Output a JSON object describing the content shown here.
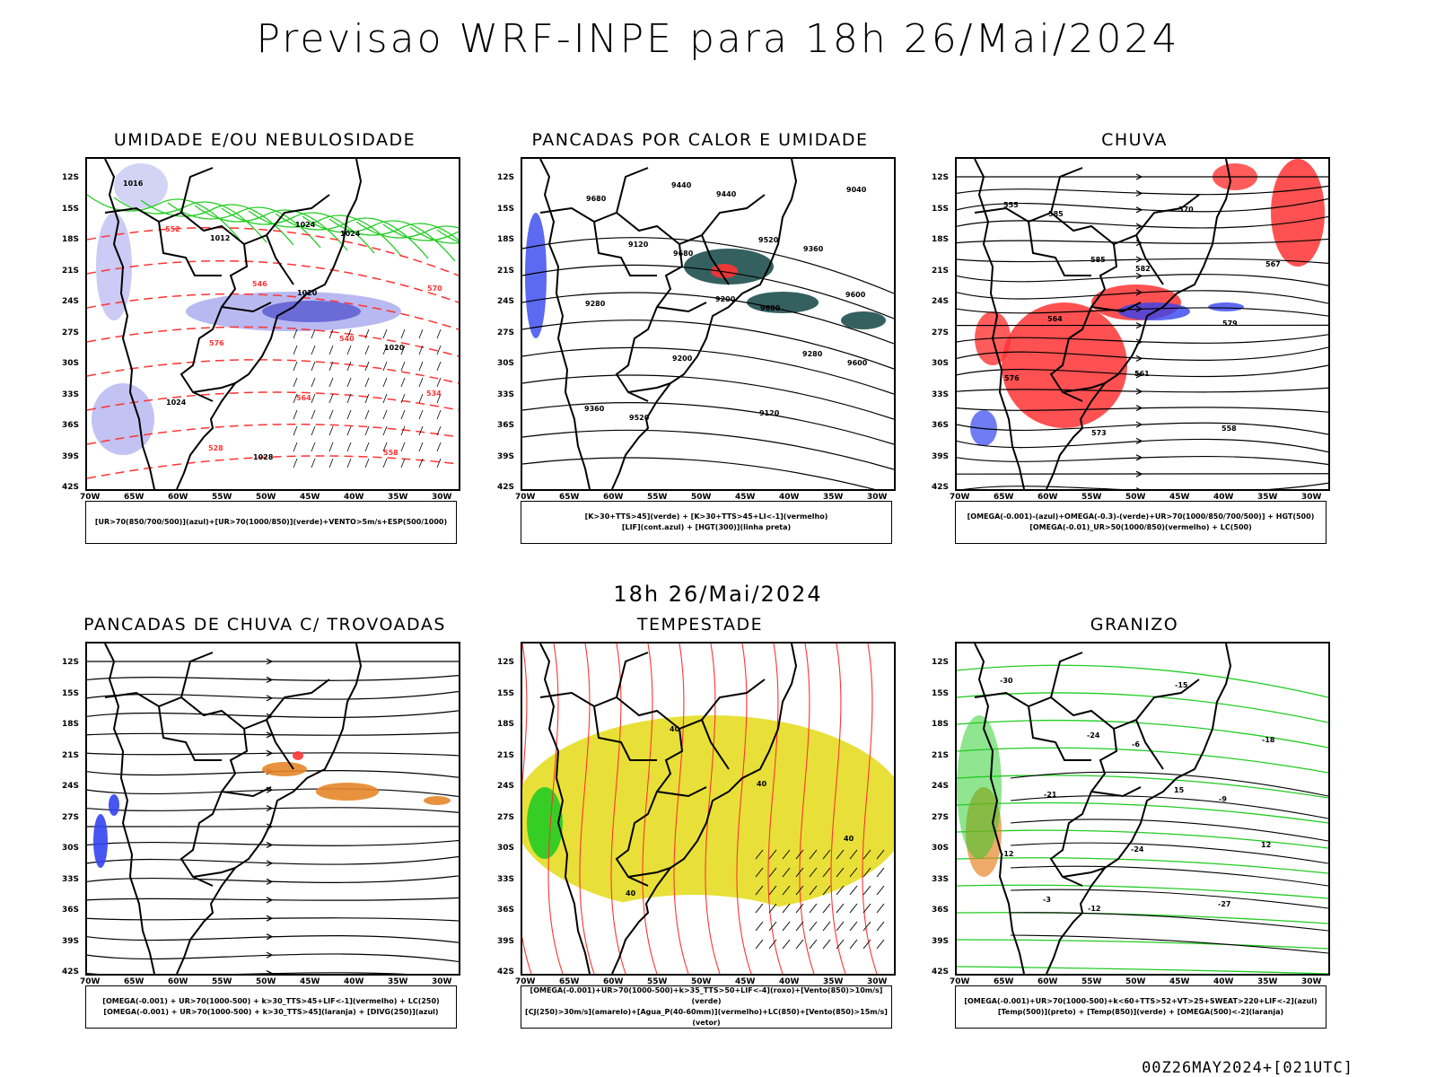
{
  "main_title": "Previsao WRF-INPE  para 18h 26/Mai/2024",
  "mid_title": "18h 26/Mai/2024",
  "footer": "00Z26MAY2024+[021UTC]",
  "axes": {
    "lat_labels": [
      "12S",
      "15S",
      "18S",
      "21S",
      "24S",
      "27S",
      "30S",
      "33S",
      "36S",
      "39S",
      "42S"
    ],
    "lon_labels": [
      "70W",
      "65W",
      "60W",
      "55W",
      "50W",
      "45W",
      "40W",
      "35W",
      "30W"
    ]
  },
  "colors": {
    "red": "#ff3333",
    "green": "#22cc22",
    "blue": "#3344ee",
    "yellow": "#e5dd22",
    "teal": "#1f4f4f",
    "orange": "#e6862a",
    "lavender": "#a8a8ee"
  },
  "panels": [
    {
      "title": "UMIDADE E/OU NEBULOSIDADE",
      "legend": [
        "[UR>70(850/700/500)](azul)+[UR>70(1000/850)](verde)+VENTO>5m/s+ESP(500/1000)"
      ],
      "labels": [
        "1016",
        "1012",
        "1020",
        "1020",
        "1024",
        "1028",
        "1024",
        "570",
        "576",
        "564",
        "558",
        "552",
        "546",
        "540",
        "534",
        "528",
        "1024"
      ]
    },
    {
      "title": "PANCADAS POR CALOR E UMIDADE",
      "legend": [
        "[K>30+TTS>45](verde) + [K>30+TTS>45+LI<-1](vermelho)",
        "[LIF](cont.azul) + [HGT(300)](linha preta)"
      ],
      "labels": [
        "9680",
        "9680",
        "9680",
        "9600",
        "9520",
        "9440",
        "9360",
        "9280",
        "9200",
        "9120",
        "9040",
        "9120",
        "9200",
        "9280",
        "9360",
        "9440",
        "9520",
        "9600"
      ]
    },
    {
      "title": "CHUVA",
      "legend": [
        "[OMEGA(-0.001)-(azul)+OMEGA(-0.3)-(verde)+UR>70(1000/850/700/500)] + HGT(500)",
        "[OMEGA(-0.01)_UR>50(1000/850)(vermelho) + LC(500)"
      ],
      "labels": [
        "585",
        "582",
        "579",
        "576",
        "573",
        "570",
        "567",
        "564",
        "561",
        "558",
        "555",
        "585"
      ]
    },
    {
      "title": "PANCADAS DE CHUVA C/ TROVOADAS",
      "legend": [
        "[OMEGA(-0.001) + UR>70(1000-500) + k>30_TTS>45+LIF<-1](vermelho) + LC(250)",
        "[OMEGA(-0.001) + UR>70(1000-500) + k>30_TTS>45](laranja) + [DIVG(250)](azul)"
      ],
      "labels": []
    },
    {
      "title": "TEMPESTADE",
      "legend": [
        "[OMEGA(-0.001)+UR>70(1000-500)+k>35_TTS>50+LIF<-4](roxo)+[Vento(850)>10m/s](verde)",
        "[CJ(250)>30m/s](amarelo)+[Agua_P(40-60mm)](vermelho)+LC(850)+[Vento(850)>15m/s](vetor)"
      ],
      "labels": [
        "40",
        "40",
        "40",
        "40"
      ]
    },
    {
      "title": "GRANIZO",
      "legend": [
        "[OMEGA(-0.001)+UR>70(1000-500)+k<60+TTS>52+VT>25+SWEAT>220+LIF<-2](azul)",
        "[Temp(500)](preto) + [Temp(850)](verde) + [OMEGA(500)<-2](laranja)"
      ],
      "labels": [
        "-6",
        "-9",
        "-12",
        "-12",
        "-15",
        "-18",
        "-21",
        "-24",
        "-27",
        "-30",
        "-24",
        "15",
        "12",
        "-3"
      ]
    }
  ]
}
